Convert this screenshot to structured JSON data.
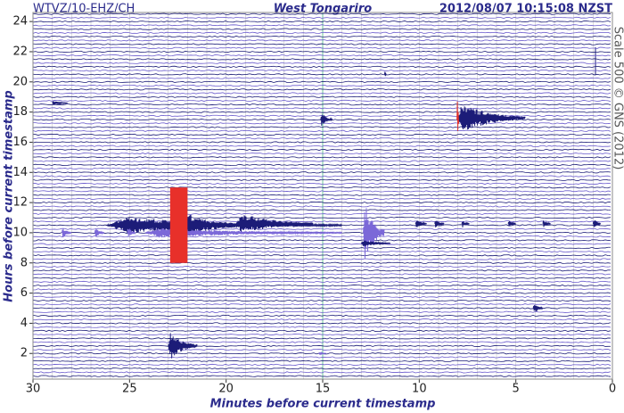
{
  "chart_data": {
    "type": "helicorder",
    "station": "WTVZ/10-EHZ/CH",
    "title": "West Tongariro",
    "timestamp": "2012/08/07 10:15:08 NZST",
    "scale_note": "Scale 500 © GNS (2012)",
    "xlabel": "Minutes before current timestamp",
    "ylabel": "Hours before current timestamp",
    "xlim": [
      30,
      0
    ],
    "ylim": [
      0.3,
      24.6
    ],
    "xticks": [
      30,
      25,
      20,
      15,
      10,
      5,
      0
    ],
    "yticks": [
      2,
      4,
      6,
      8,
      10,
      12,
      14,
      16,
      18,
      20,
      22,
      24
    ],
    "grid": true,
    "grid_color": "#c8c8c8",
    "marker_line": {
      "x": 15,
      "color": "#6cc79a"
    },
    "trace_colors": [
      "#1c1c78",
      "#6a5acd"
    ],
    "events": [
      {
        "x_start": 26.2,
        "x_end": 14.0,
        "y": 10.5,
        "amplitude": 0.55,
        "color": "#1c1c78"
      },
      {
        "x_start": 23.0,
        "x_end": 19.5,
        "y": 10.5,
        "amplitude": 1.3,
        "color": "#1c1c78"
      },
      {
        "x_start": 19.5,
        "x_end": 15.5,
        "y": 10.6,
        "amplitude": 0.7,
        "color": "#1c1c78"
      },
      {
        "x_start": 24.2,
        "x_end": 14.0,
        "y": 10.0,
        "amplitude": 0.35,
        "color": "#7b68d8"
      },
      {
        "x_start": 12.9,
        "x_end": 11.8,
        "y": 10.0,
        "amplitude": 2.0,
        "color": "#7b68d8"
      },
      {
        "x_start": 8.05,
        "x_end": 4.5,
        "y": 17.6,
        "amplitude": 1.0,
        "color": "#1c1c78"
      },
      {
        "x_start": 8.05,
        "x_end": 7.95,
        "y": 17.5,
        "amplitude": 2.5,
        "color": "#e0302a"
      },
      {
        "x_start": 23.0,
        "x_end": 21.5,
        "y": 2.5,
        "amplitude": 1.0,
        "color": "#1c1c78"
      },
      {
        "x_start": 15.1,
        "x_end": 14.5,
        "y": 17.5,
        "amplitude": 0.5,
        "color": "#1c1c78"
      },
      {
        "x_start": 4.1,
        "x_end": 3.6,
        "y": 5.0,
        "amplitude": 0.4,
        "color": "#1c1c78"
      },
      {
        "x_start": 28.5,
        "x_end": 28.0,
        "y": 10.0,
        "amplitude": 0.4,
        "color": "#7b68d8"
      },
      {
        "x_start": 26.8,
        "x_end": 26.3,
        "y": 10.0,
        "amplitude": 0.35,
        "color": "#7b68d8"
      },
      {
        "x_start": 25.1,
        "x_end": 24.7,
        "y": 10.0,
        "amplitude": 0.45,
        "color": "#7b68d8"
      },
      {
        "x_start": 13.0,
        "x_end": 11.5,
        "y": 9.3,
        "amplitude": 0.25,
        "color": "#1c1c78"
      },
      {
        "x_start": 11.8,
        "x_end": 11.7,
        "y": 20.5,
        "amplitude": 0.3,
        "color": "#1c1c78"
      },
      {
        "x_start": 29.0,
        "x_end": 28.2,
        "y": 18.6,
        "amplitude": 0.15,
        "color": "#1c1c78"
      },
      {
        "x_start": 10.2,
        "x_end": 9.6,
        "y": 10.6,
        "amplitude": 0.3,
        "color": "#1c1c78"
      },
      {
        "x_start": 9.2,
        "x_end": 8.7,
        "y": 10.6,
        "amplitude": 0.35,
        "color": "#1c1c78"
      },
      {
        "x_start": 7.8,
        "x_end": 7.4,
        "y": 10.6,
        "amplitude": 0.3,
        "color": "#1c1c78"
      },
      {
        "x_start": 5.4,
        "x_end": 5.0,
        "y": 10.6,
        "amplitude": 0.3,
        "color": "#1c1c78"
      },
      {
        "x_start": 3.6,
        "x_end": 3.2,
        "y": 10.6,
        "amplitude": 0.3,
        "color": "#1c1c78"
      },
      {
        "x_start": 1.0,
        "x_end": 0.6,
        "y": 10.6,
        "amplitude": 0.4,
        "color": "#1c1c78"
      },
      {
        "x_start": 15.2,
        "x_end": 14.8,
        "y": 2.0,
        "amplitude": 0.1,
        "color": "#7b68d8"
      }
    ],
    "clips": [
      {
        "x_start": 22.9,
        "x_end": 22.0,
        "y_low": 8,
        "y_high": 13,
        "color": "#e8302a"
      }
    ]
  }
}
